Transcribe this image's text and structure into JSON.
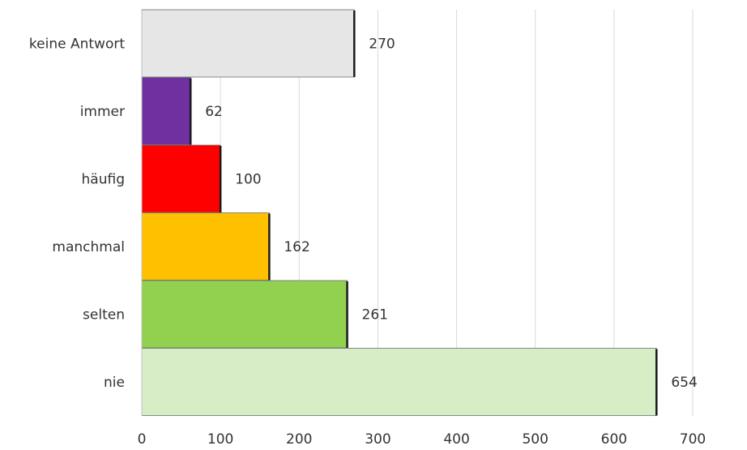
{
  "chart_data": {
    "type": "bar",
    "orientation": "horizontal",
    "title": "",
    "xlabel": "",
    "ylabel": "",
    "categories": [
      "keine Antwort",
      "immer",
      "häufig",
      "manchmal",
      "selten",
      "nie"
    ],
    "values": [
      270,
      62,
      100,
      162,
      261,
      654
    ],
    "data_labels": [
      "270",
      "62",
      "100",
      "162",
      "261",
      "654"
    ],
    "colors": [
      "#e6e6e6",
      "#7030a0",
      "#ff0000",
      "#ffc000",
      "#92d050",
      "#d6edc6"
    ],
    "xlim": [
      0,
      700
    ],
    "x_ticks": [
      0,
      100,
      200,
      300,
      400,
      500,
      600,
      700
    ],
    "x_tick_labels": [
      "0",
      "100",
      "200",
      "300",
      "400",
      "500",
      "600",
      "700"
    ],
    "grid": "vertical",
    "legend": "none"
  }
}
